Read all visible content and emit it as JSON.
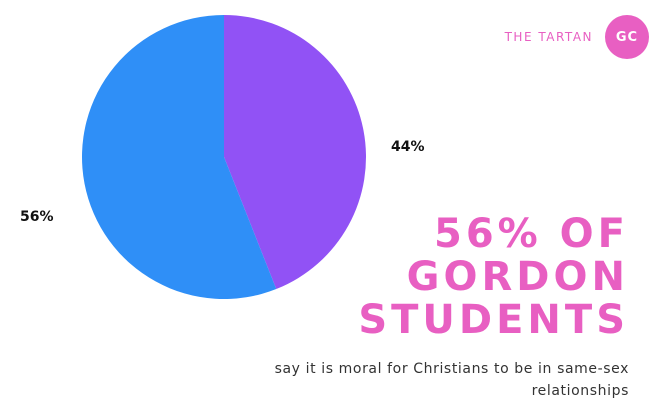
{
  "brand": {
    "name": "THE TARTAN",
    "badge": "GC",
    "color": "#e85fc2"
  },
  "headline": {
    "lines": [
      "56% OF",
      "GORDON",
      "STUDENTS"
    ],
    "color": "#e85fc2"
  },
  "caption": "say it is moral for Christians to be in same-sex relationships",
  "chart_data": {
    "type": "pie",
    "slices": [
      {
        "value": 44,
        "label": "44%",
        "color": "#9152f5"
      },
      {
        "value": 56,
        "label": "56%",
        "color": "#2f8ff7"
      }
    ],
    "start": "12 o'clock",
    "direction": "clockwise"
  }
}
